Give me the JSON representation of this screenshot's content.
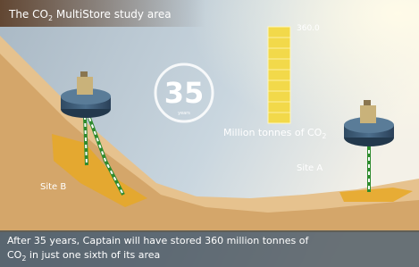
{
  "header": {
    "title": {
      "before": "The CO",
      "sub": "2",
      "after": " MultiStore study area"
    }
  },
  "gauge": {
    "max_label": "360.0",
    "unit": {
      "before": "Million tonnes of CO",
      "sub": "2"
    }
  },
  "counter": {
    "number": "35",
    "unit": "years"
  },
  "sites": [
    {
      "label": "Site A"
    },
    {
      "label": "Site B"
    }
  ],
  "caption": {
    "line1": "After 35 years, Captain will have stored 360 million tonnes of",
    "line2_before": "CO",
    "line2_sub": "2",
    "line2_after": " in just one sixth of its area"
  }
}
